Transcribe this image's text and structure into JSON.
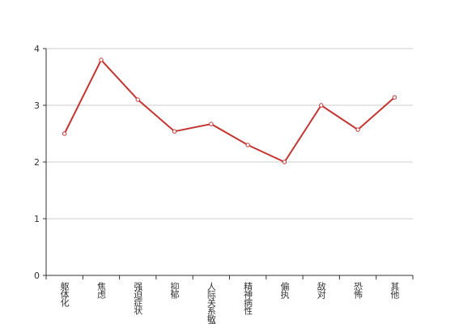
{
  "chart_data": {
    "type": "line",
    "categories": [
      "躯体化",
      "焦虑",
      "强迫症状",
      "抑郁",
      "人际关系敏感",
      "精神病性",
      "偏执",
      "敌对",
      "恐怖",
      "其他"
    ],
    "values": [
      2.5,
      3.8,
      3.1,
      2.54,
      2.67,
      2.3,
      2.0,
      3.0,
      2.57,
      3.14
    ],
    "color": "#c23531",
    "ylim": [
      0,
      4
    ],
    "yticks": [
      0,
      1,
      2,
      3,
      4
    ],
    "grid": true
  }
}
